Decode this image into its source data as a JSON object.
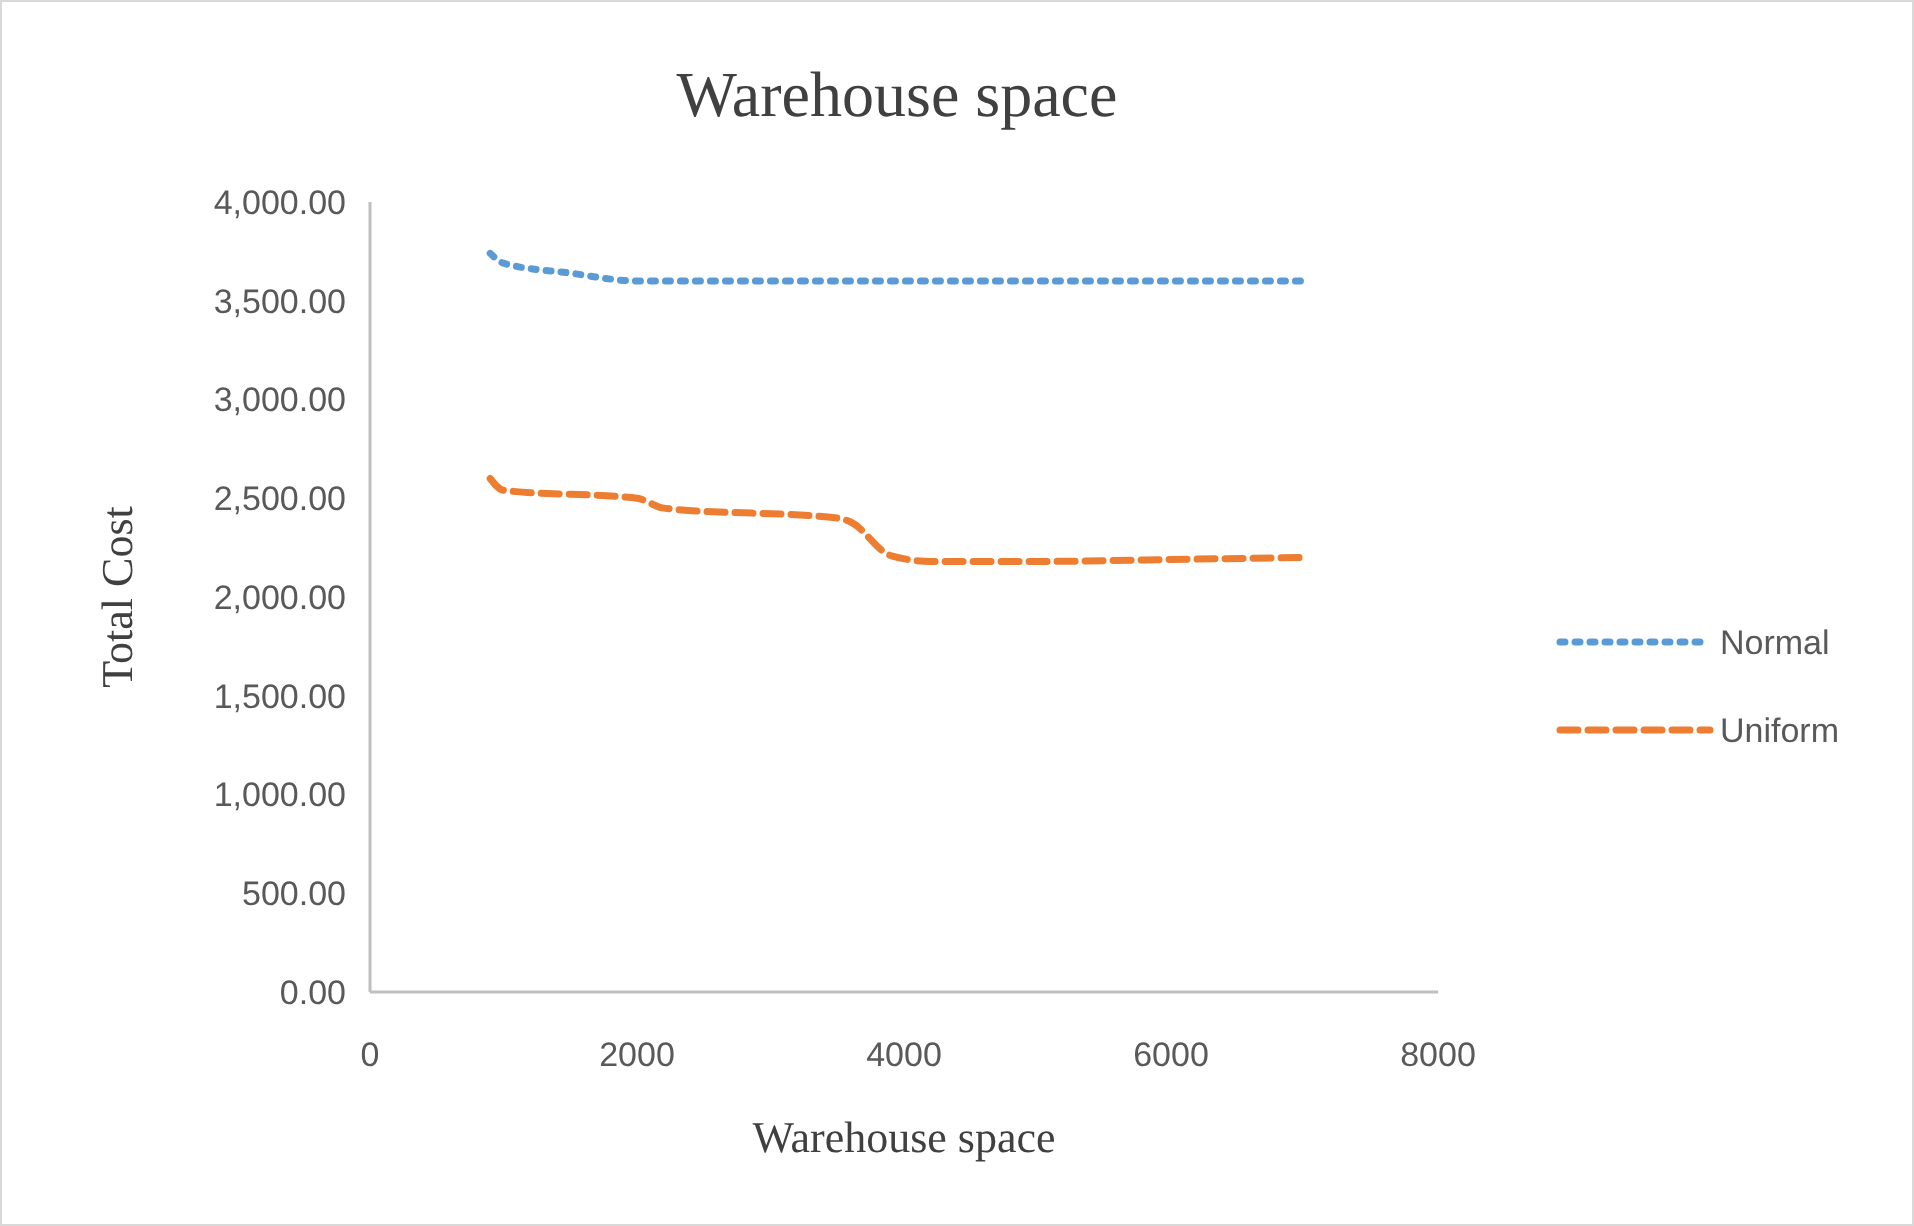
{
  "chart_data": {
    "type": "line",
    "title": "Warehouse space",
    "xlabel": "Warehouse space",
    "ylabel": "Total Cost",
    "xlim": [
      0,
      8000
    ],
    "xticks": [
      0,
      2000,
      4000,
      6000,
      8000
    ],
    "ylim": [
      0,
      4000
    ],
    "yticks": [
      {
        "value": 0,
        "label": "0.00"
      },
      {
        "value": 500,
        "label": "500.00"
      },
      {
        "value": 1000,
        "label": "1,000.00"
      },
      {
        "value": 1500,
        "label": "1,500.00"
      },
      {
        "value": 2000,
        "label": "2,000.00"
      },
      {
        "value": 2500,
        "label": "2,500.00"
      },
      {
        "value": 3000,
        "label": "3,000.00"
      },
      {
        "value": 3500,
        "label": "3,500.00"
      },
      {
        "value": 4000,
        "label": "4,000.00"
      }
    ],
    "grid": false,
    "legend": "right",
    "marker": "none",
    "series": [
      {
        "name": "Normal",
        "color": "#5b9bd5",
        "line_style": "dotted",
        "x": [
          900,
          1000,
          1500,
          2000,
          3000,
          4000,
          5000,
          6000,
          7000
        ],
        "values": [
          3740,
          3690,
          3640,
          3600,
          3600,
          3600,
          3600,
          3600,
          3600
        ]
      },
      {
        "name": "Uniform",
        "color": "#ed7d31",
        "line_style": "dashed",
        "x": [
          900,
          1000,
          2000,
          2200,
          3500,
          3600,
          3900,
          4200,
          5000,
          6000,
          7000
        ],
        "values": [
          2600,
          2540,
          2500,
          2450,
          2400,
          2380,
          2210,
          2180,
          2180,
          2190,
          2200
        ]
      }
    ]
  }
}
